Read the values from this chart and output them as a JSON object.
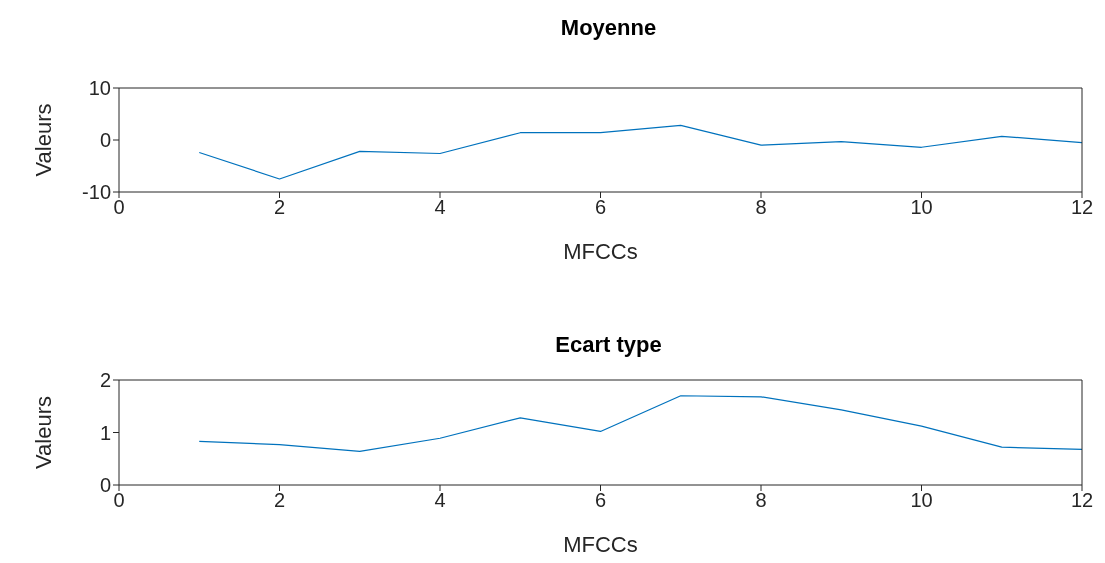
{
  "chart_data": [
    {
      "type": "line",
      "title": "Moyenne",
      "xlabel": "MFCCs",
      "ylabel": "Valeurs",
      "x": [
        1,
        2,
        3,
        4,
        5,
        6,
        7,
        8,
        9,
        10,
        11,
        12
      ],
      "series": [
        {
          "color": "#0072bd",
          "values": [
            -2.4,
            -7.5,
            -2.2,
            -2.6,
            1.4,
            1.4,
            2.8,
            -1.0,
            -0.3,
            -1.4,
            0.7,
            -0.5
          ]
        }
      ],
      "xlim": [
        0,
        12
      ],
      "xticks": [
        0,
        2,
        4,
        6,
        8,
        10,
        12
      ],
      "ylim": [
        -10,
        10
      ],
      "yticks": [
        -10,
        0,
        10
      ]
    },
    {
      "type": "line",
      "title": "Ecart type",
      "xlabel": "MFCCs",
      "ylabel": "Valeurs",
      "x": [
        1,
        2,
        3,
        4,
        5,
        6,
        7,
        8,
        9,
        10,
        11,
        12
      ],
      "series": [
        {
          "color": "#0072bd",
          "values": [
            0.83,
            0.77,
            0.64,
            0.89,
            1.28,
            1.02,
            1.7,
            1.68,
            1.43,
            1.12,
            0.72,
            0.68
          ]
        }
      ],
      "xlim": [
        0,
        12
      ],
      "xticks": [
        0,
        2,
        4,
        6,
        8,
        10,
        12
      ],
      "ylim": [
        0,
        2
      ],
      "yticks": [
        0,
        1,
        2
      ]
    }
  ]
}
